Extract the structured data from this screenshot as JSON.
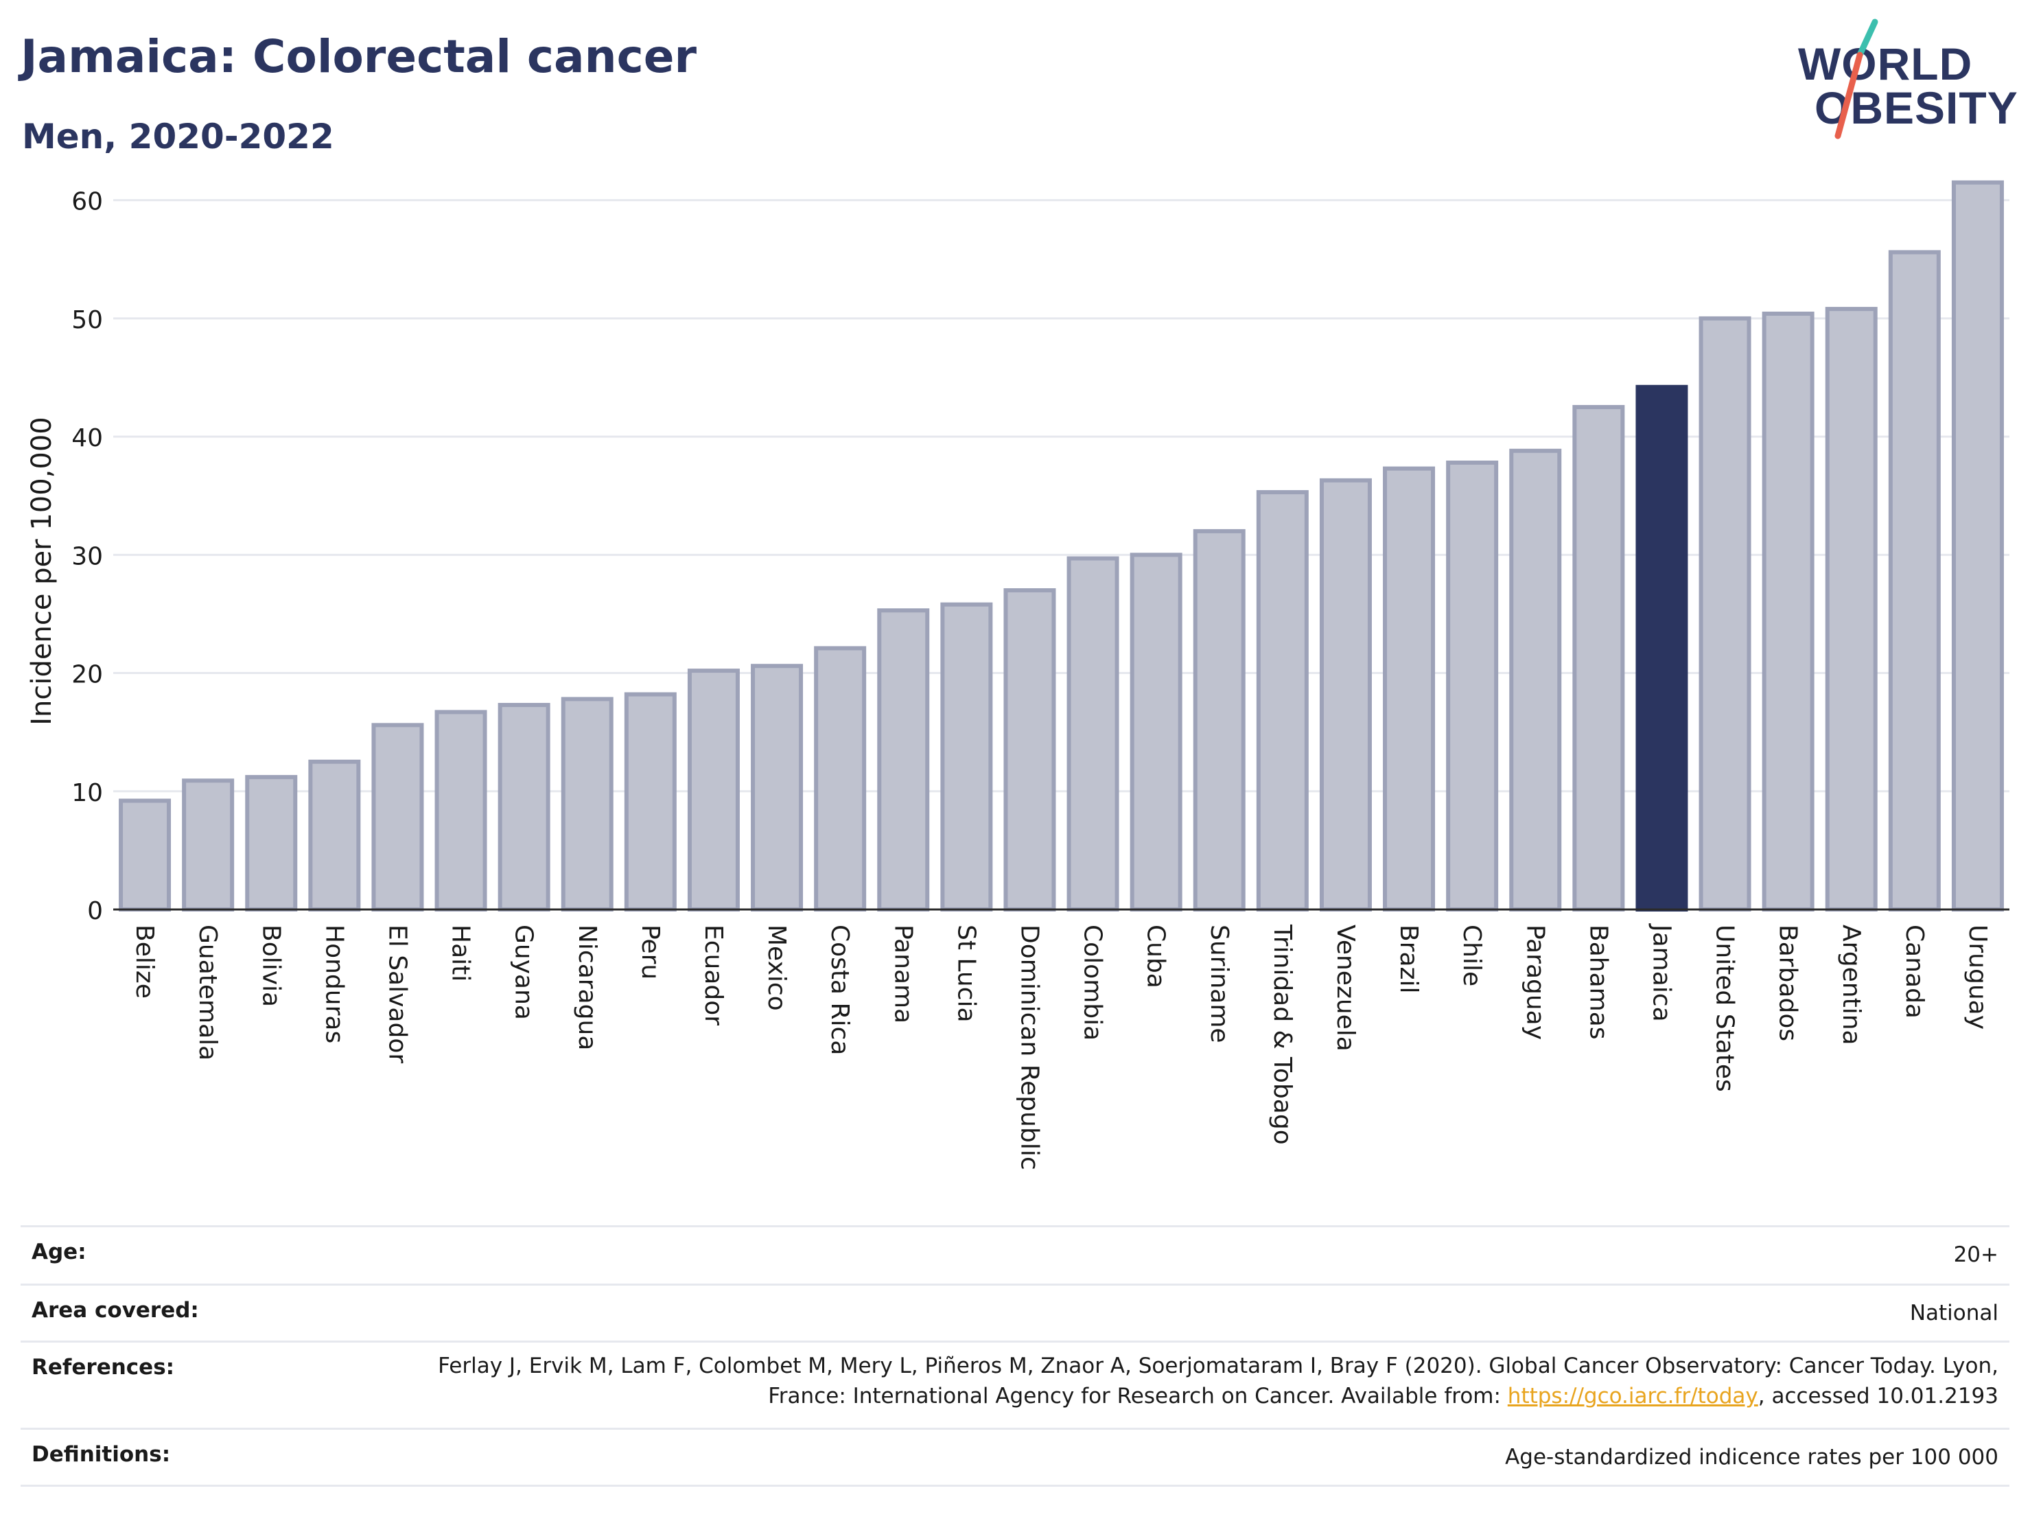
{
  "title": "Jamaica: Colorectal cancer",
  "subtitle": "Men, 2020-2022",
  "logo": {
    "line1": "WORLD",
    "line2": "OBESITY",
    "colors": {
      "text": "#2b3560",
      "slash_red": "#e8604c",
      "slash_teal": "#3cbfae"
    }
  },
  "chart_data": {
    "type": "bar",
    "ylabel": "Incidence per 100,000",
    "xlabel": "",
    "ylim": [
      0,
      63
    ],
    "yticks": [
      0,
      10,
      20,
      30,
      40,
      50,
      60
    ],
    "grid": true,
    "highlight": "Jamaica",
    "colors": {
      "bar": "#bfc2cf",
      "bar_border": "#9da2b8",
      "highlight": "#2b3560",
      "grid": "#e6e8ee"
    },
    "categories": [
      "Belize",
      "Guatemala",
      "Bolivia",
      "Honduras",
      "El Salvador",
      "Haiti",
      "Guyana",
      "Nicaragua",
      "Peru",
      "Ecuador",
      "Mexico",
      "Costa Rica",
      "Panama",
      "St Lucia",
      "Dominican Republic",
      "Colombia",
      "Cuba",
      "Suriname",
      "Trinidad & Tobago",
      "Venezuela",
      "Brazil",
      "Chile",
      "Paraguay",
      "Bahamas",
      "Jamaica",
      "United States",
      "Barbados",
      "Argentina",
      "Canada",
      "Uruguay"
    ],
    "values": [
      9.2,
      10.9,
      11.2,
      12.5,
      15.6,
      16.7,
      17.3,
      17.8,
      18.2,
      20.2,
      20.6,
      22.1,
      25.3,
      25.8,
      27.0,
      29.7,
      30.0,
      32.0,
      35.3,
      36.3,
      37.3,
      37.8,
      38.8,
      42.5,
      44.2,
      50.0,
      50.4,
      50.8,
      55.6,
      61.5
    ]
  },
  "meta": {
    "age_label": "Age:",
    "age_value": "20+",
    "area_label": "Area covered:",
    "area_value": "National",
    "references_label": "References:",
    "references_text_1": "Ferlay J, Ervik M, Lam F, Colombet M, Mery L, Piñeros M, Znaor A, Soerjomataram I, Bray F (2020). Global Cancer Observatory: Cancer Today. Lyon, France: International Agency for Research on Cancer. Available from: ",
    "references_link": "https://gco.iarc.fr/today",
    "references_text_2": ", accessed 10.01.2193",
    "definitions_label": "Definitions:",
    "definitions_value": "Age-standardized indicence rates per 100 000"
  }
}
